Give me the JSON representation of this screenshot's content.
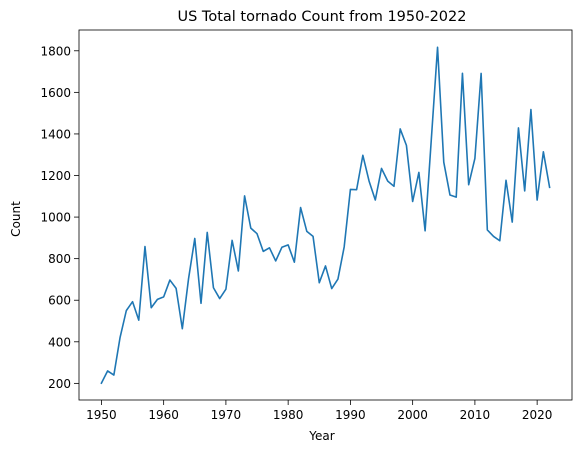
{
  "chart_data": {
    "type": "line",
    "title": "US Total tornado Count from 1950-2022",
    "xlabel": "Year",
    "ylabel": "Count",
    "xlim": [
      1946.4,
      2025.6
    ],
    "ylim": [
      120,
      1900
    ],
    "xticks": [
      1950,
      1960,
      1970,
      1980,
      1990,
      2000,
      2010,
      2020
    ],
    "yticks": [
      200,
      400,
      600,
      800,
      1000,
      1200,
      1400,
      1600,
      1800
    ],
    "grid": false,
    "line_color": "#1f77b4",
    "series": [
      {
        "x": [
          1950,
          1951,
          1952,
          1953,
          1954,
          1955,
          1956,
          1957,
          1958,
          1959,
          1960,
          1961,
          1962,
          1963,
          1964,
          1965,
          1966,
          1967,
          1968,
          1969,
          1970,
          1971,
          1972,
          1973,
          1974,
          1975,
          1976,
          1977,
          1978,
          1979,
          1980,
          1981,
          1982,
          1983,
          1984,
          1985,
          1986,
          1987,
          1988,
          1989,
          1990,
          1991,
          1992,
          1993,
          1994,
          1995,
          1996,
          1997,
          1998,
          1999,
          2000,
          2001,
          2002,
          2003,
          2004,
          2005,
          2006,
          2007,
          2008,
          2009,
          2010,
          2011,
          2012,
          2013,
          2014,
          2015,
          2016,
          2017,
          2018,
          2019,
          2020,
          2021,
          2022
        ],
        "values": [
          201,
          260,
          240,
          421,
          550,
          593,
          504,
          858,
          564,
          604,
          616,
          697,
          657,
          463,
          704,
          897,
          585,
          926,
          660,
          608,
          653,
          888,
          741,
          1102,
          947,
          920,
          835,
          852,
          789,
          855,
          866,
          783,
          1046,
          931,
          907,
          684,
          765,
          656,
          702,
          856,
          1133,
          1132,
          1297,
          1173,
          1082,
          1234,
          1173,
          1148,
          1424,
          1345,
          1075,
          1215,
          934,
          1374,
          1817,
          1264,
          1106,
          1096,
          1692,
          1156,
          1282,
          1691,
          938,
          907,
          886,
          1177,
          976,
          1429,
          1126,
          1517,
          1082,
          1314,
          1143
        ]
      }
    ]
  }
}
